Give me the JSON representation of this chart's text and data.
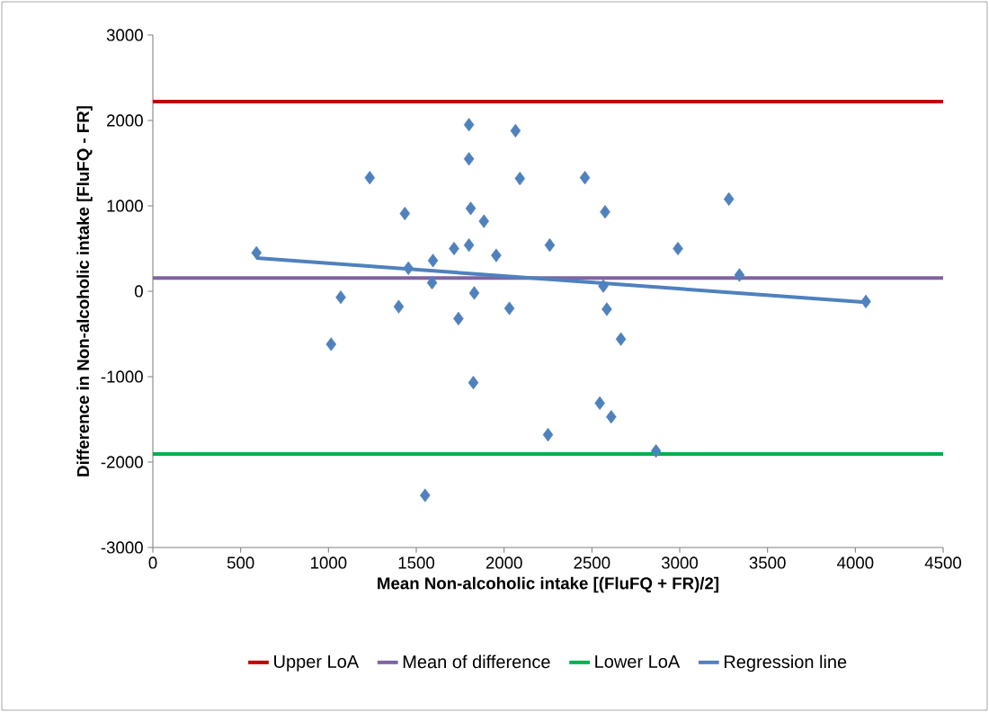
{
  "chart_data": {
    "type": "scatter",
    "xlabel": "Mean Non-alcoholic intake [(FluFQ + FR)/2]",
    "ylabel": "Difference in Non-alcoholic intake [FluFQ - FR]",
    "xlim": [
      0,
      4500
    ],
    "xticks": [
      0,
      500,
      1000,
      1500,
      2000,
      2500,
      3000,
      3500,
      4000,
      4500
    ],
    "ylim": [
      -3000,
      3000
    ],
    "yticks": [
      -3000,
      -2000,
      -1000,
      0,
      1000,
      2000,
      3000
    ],
    "grid": false,
    "legend": "bottom",
    "ref_lines": [
      {
        "axis": "y",
        "value": 2220,
        "label": "Upper LoA",
        "color": "#c00000"
      },
      {
        "axis": "y",
        "value": 155,
        "label": "Mean of difference",
        "color": "#8064a2"
      },
      {
        "axis": "y",
        "value": -1905,
        "label": "Lower LoA",
        "color": "#00b050"
      }
    ],
    "series": [
      {
        "type": "scatter",
        "color": "#4f81bd",
        "marker": "diamond",
        "x": [
          590,
          1015,
          1070,
          1235,
          1400,
          1435,
          1455,
          1590,
          1595,
          1715,
          1740,
          1800,
          1800,
          1800,
          1810,
          1830,
          1825,
          1885,
          1955,
          2030,
          2065,
          2090,
          2250,
          2260,
          2460,
          1550,
          2565,
          2575,
          2585,
          2665,
          2545,
          2610,
          2865,
          2990,
          3280,
          3340,
          4060
        ],
        "values": [
          450,
          -620,
          -70,
          1330,
          -180,
          910,
          270,
          100,
          360,
          500,
          -320,
          540,
          1550,
          1950,
          970,
          -20,
          -1070,
          820,
          420,
          -200,
          1880,
          1320,
          -1680,
          540,
          1330,
          -2390,
          60,
          930,
          -210,
          -560,
          -1310,
          -1470,
          -1870,
          500,
          1080,
          190,
          -120
        ]
      },
      {
        "type": "line",
        "name": "Regression line",
        "color": "#4f81bd",
        "marker": "none",
        "line_style": "solid",
        "x": [
          590,
          4060
        ],
        "values": [
          390,
          -130
        ]
      }
    ]
  }
}
